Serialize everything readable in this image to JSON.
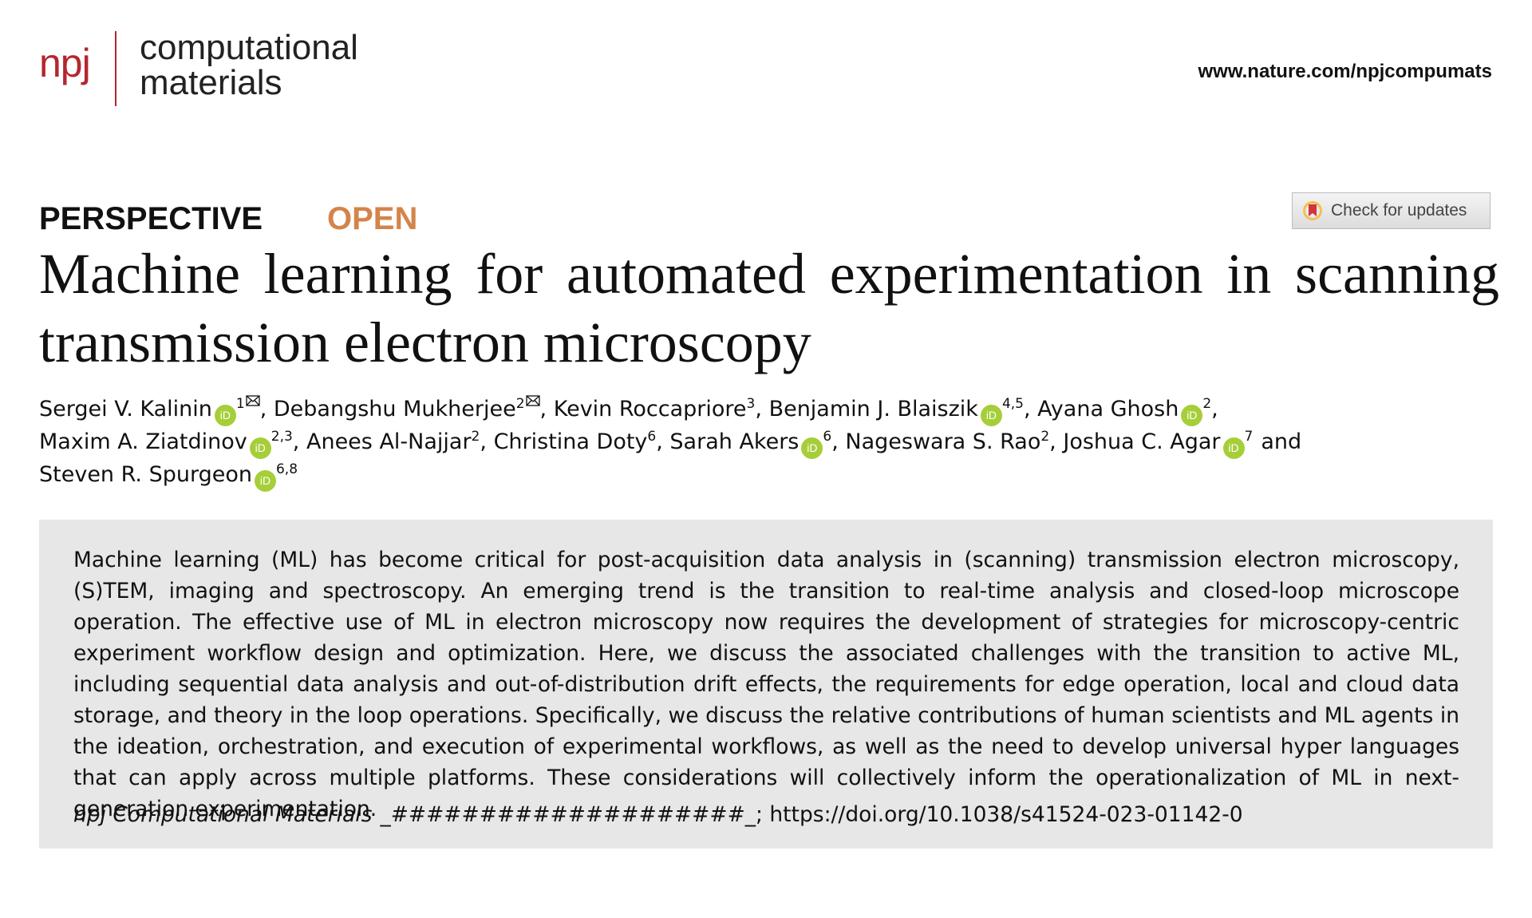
{
  "journal": {
    "brand": "npj",
    "name_line1": "computational",
    "name_line2": "materials"
  },
  "url": "www.nature.com/npjcompumats",
  "article_type": "PERSPECTIVE",
  "access": "OPEN",
  "check_updates": "Check for updates",
  "title": "Machine learning for automated experimentation in scanning transmission electron microscopy",
  "orcid_icon_text": "iD",
  "author_separator": ",",
  "author_last_separator": "and",
  "authors": [
    {
      "name": "Sergei V. Kalinin",
      "orcid": true,
      "aff": "1",
      "email": true
    },
    {
      "name": "Debangshu Mukherjee",
      "orcid": false,
      "aff": "2",
      "email": true
    },
    {
      "name": "Kevin Roccapriore",
      "orcid": false,
      "aff": "3",
      "email": false
    },
    {
      "name": "Benjamin J. Blaiszik",
      "orcid": true,
      "aff": "4,5",
      "email": false
    },
    {
      "name": "Ayana Ghosh",
      "orcid": true,
      "aff": "2",
      "email": false
    },
    {
      "name": "Maxim A. Ziatdinov",
      "orcid": true,
      "aff": "2,3",
      "email": false
    },
    {
      "name": "Anees Al-Najjar",
      "orcid": false,
      "aff": "2",
      "email": false
    },
    {
      "name": "Christina Doty",
      "orcid": false,
      "aff": "6",
      "email": false
    },
    {
      "name": "Sarah Akers",
      "orcid": true,
      "aff": "6",
      "email": false
    },
    {
      "name": "Nageswara S. Rao",
      "orcid": false,
      "aff": "2",
      "email": false
    },
    {
      "name": "Joshua C. Agar",
      "orcid": true,
      "aff": "7",
      "email": false
    },
    {
      "name": "Steven R. Spurgeon",
      "orcid": true,
      "aff": "6,8",
      "email": false
    }
  ],
  "abstract": "Machine learning (ML) has become critical for post-acquisition data analysis in (scanning) transmission electron microscopy, (S)TEM, imaging and spectroscopy. An emerging trend is the transition to real-time analysis and closed-loop microscope operation. The effective use of ML in electron microscopy now requires the development of strategies for microscopy-centric experiment workflow design and optimization. Here, we discuss the associated challenges with the transition to active ML, including sequential data analysis and out-of-distribution drift effects, the requirements for edge operation, local and cloud data storage, and theory in the loop operations. Specifically, we discuss the relative contributions of human scientists and ML agents in the ideation, orchestration, and execution of experimental workflows, as well as the need to develop universal hyper languages that can apply across multiple platforms. These considerations will collectively inform the operationalization of ML in next-generation experimentation.",
  "citation": {
    "journal": "npj Computational Materials",
    "rest": "_####################_; https://doi.org/10.1038/s41524-023-01142-0"
  }
}
